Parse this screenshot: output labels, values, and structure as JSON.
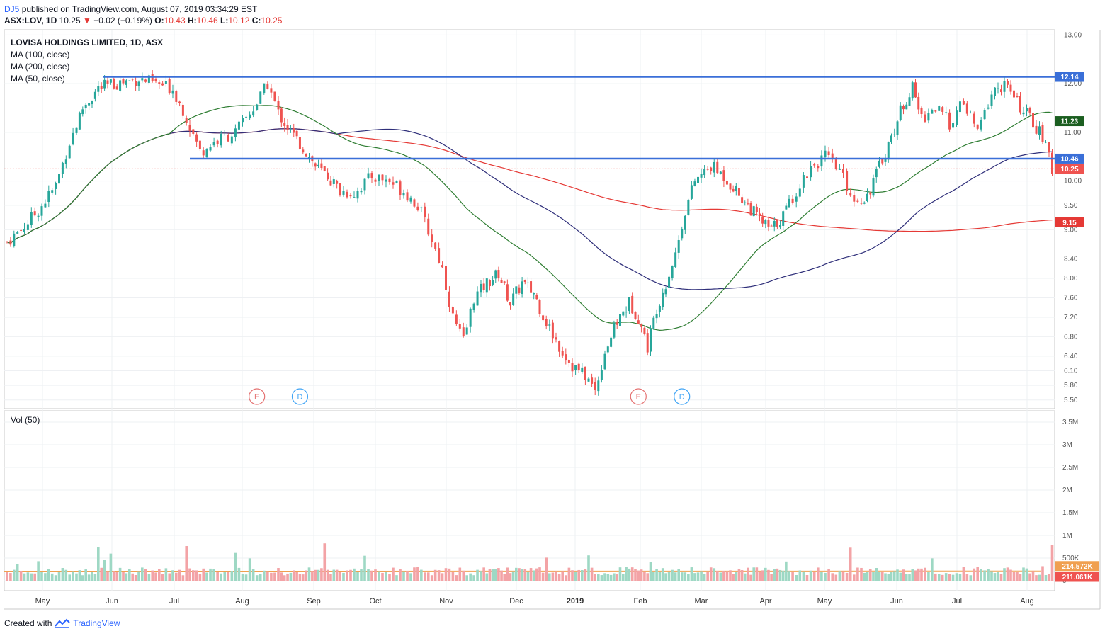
{
  "header": {
    "author": "DJ5",
    "published": "published on TradingView.com, August 07, 2019 03:34:29 EST",
    "symbol": "ASX:LOV, 1D",
    "last": "10.25",
    "change": "−0.02 (−0.19%)",
    "o_label": "O:",
    "o_val": "10.43",
    "h_label": "H:",
    "h_val": "10.46",
    "l_label": "L:",
    "l_val": "10.12",
    "c_label": "C:",
    "c_val": "10.25"
  },
  "legend": {
    "title": "LOVISA HOLDINGS LIMITED, 1D, ASX",
    "ma100": "MA (100, close)",
    "ma200": "MA (200, close)",
    "ma50": "MA (50, close)",
    "vol": "Vol (50)"
  },
  "footer": {
    "created": "Created with",
    "brand": "TradingView"
  },
  "colors": {
    "up": "#26a69a",
    "down": "#ef5350",
    "ma50": "#2e7d32",
    "ma100": "#2f2f7a",
    "ma200": "#e53935",
    "hline": "#3a6fd8",
    "vol_ma": "#f0a050"
  },
  "chart_data": {
    "type": "candlestick",
    "price_ticks": [
      "13.00",
      "12.00",
      "11.00",
      "10.00",
      "9.50",
      "9.00",
      "8.40",
      "8.00",
      "7.60",
      "7.20",
      "6.80",
      "6.40",
      "6.10",
      "5.80",
      "5.50"
    ],
    "price_range": [
      5.38,
      13.05
    ],
    "volume_ticks": [
      "3.5M",
      "3M",
      "2.5M",
      "2M",
      "1.5M",
      "1M",
      "500K",
      "0"
    ],
    "volume_range": [
      0,
      3500000
    ],
    "months": [
      "May",
      "Jun",
      "Jul",
      "Aug",
      "Sep",
      "Oct",
      "Nov",
      "Dec",
      "2019",
      "Feb",
      "Mar",
      "Apr",
      "May",
      "Jun",
      "Jul",
      "Aug"
    ],
    "badges": [
      {
        "label": "12.14",
        "value": 12.14,
        "color": "#3a6fd8"
      },
      {
        "label": "11.23",
        "value": 11.23,
        "color": "#1b5e20"
      },
      {
        "label": "10.46",
        "value": 10.46,
        "color": "#3a6fd8"
      },
      {
        "label": "10.25",
        "value": 10.25,
        "color": "#ef5350"
      },
      {
        "label": "9.15",
        "value": 9.15,
        "color": "#e53935"
      }
    ],
    "volume_badges": [
      {
        "label": "214.572K",
        "value": 214572,
        "color": "#f0a050"
      },
      {
        "label": "211.061K",
        "value": 211061,
        "color": "#ef5350"
      }
    ],
    "hlines": [
      12.14,
      10.46
    ],
    "last_close": 10.25,
    "events": [
      {
        "label": "E",
        "month_index": 3.7
      },
      {
        "label": "D",
        "month_index": 4.35
      },
      {
        "label": "E",
        "month_index": 9.55
      },
      {
        "label": "D",
        "month_index": 10.25
      }
    ],
    "price_path": [
      [
        0,
        8.75
      ],
      [
        0.2,
        9.0
      ],
      [
        0.45,
        9.4
      ],
      [
        0.7,
        9.9
      ],
      [
        0.9,
        10.8
      ],
      [
        1.1,
        11.5
      ],
      [
        1.35,
        11.9
      ],
      [
        1.6,
        12.0
      ],
      [
        1.8,
        12.05
      ],
      [
        2.0,
        12.1
      ],
      [
        2.25,
        12.0
      ],
      [
        2.5,
        11.9
      ],
      [
        2.7,
        11.3
      ],
      [
        2.9,
        10.6
      ],
      [
        3.1,
        10.8
      ],
      [
        3.4,
        11.0
      ],
      [
        3.7,
        11.6
      ],
      [
        3.85,
        12.0
      ],
      [
        4.0,
        11.4
      ],
      [
        4.2,
        11.0
      ],
      [
        4.45,
        10.6
      ],
      [
        4.6,
        10.3
      ],
      [
        4.8,
        10.1
      ],
      [
        5.0,
        9.8
      ],
      [
        5.2,
        9.75
      ],
      [
        5.45,
        10.1
      ],
      [
        5.7,
        10.0
      ],
      [
        5.9,
        9.8
      ],
      [
        6.1,
        9.5
      ],
      [
        6.3,
        8.8
      ],
      [
        6.45,
        8.2
      ],
      [
        6.6,
        7.2
      ],
      [
        6.75,
        6.7
      ],
      [
        6.9,
        7.6
      ],
      [
        7.1,
        7.9
      ],
      [
        7.3,
        8.1
      ],
      [
        7.5,
        7.5
      ],
      [
        7.7,
        7.9
      ],
      [
        7.9,
        7.7
      ],
      [
        8.1,
        7.1
      ],
      [
        8.3,
        6.6
      ],
      [
        8.5,
        6.2
      ],
      [
        8.7,
        6.0
      ],
      [
        8.85,
        5.7
      ],
      [
        9.0,
        6.5
      ],
      [
        9.2,
        7.1
      ],
      [
        9.4,
        7.5
      ],
      [
        9.55,
        7.2
      ],
      [
        9.7,
        6.6
      ],
      [
        9.85,
        7.4
      ],
      [
        10.0,
        7.9
      ],
      [
        10.15,
        8.5
      ],
      [
        10.3,
        9.4
      ],
      [
        10.45,
        10.0
      ],
      [
        10.7,
        10.3
      ],
      [
        10.9,
        10.1
      ],
      [
        11.1,
        9.8
      ],
      [
        11.3,
        9.5
      ],
      [
        11.5,
        9.2
      ],
      [
        11.7,
        9.0
      ],
      [
        11.9,
        9.3
      ],
      [
        12.1,
        9.8
      ],
      [
        12.3,
        10.3
      ],
      [
        12.5,
        10.5
      ],
      [
        12.7,
        10.2
      ],
      [
        12.9,
        9.6
      ],
      [
        13.1,
        9.7
      ],
      [
        13.3,
        10.3
      ],
      [
        13.5,
        10.9
      ],
      [
        13.7,
        11.6
      ],
      [
        13.85,
        11.9
      ],
      [
        14.0,
        11.3
      ],
      [
        14.2,
        11.5
      ],
      [
        14.4,
        11.2
      ],
      [
        14.6,
        11.6
      ],
      [
        14.8,
        11.0
      ],
      [
        15.0,
        11.8
      ],
      [
        15.2,
        12.0
      ],
      [
        15.4,
        11.6
      ],
      [
        15.6,
        11.3
      ],
      [
        15.8,
        10.9
      ],
      [
        15.95,
        10.25
      ]
    ]
  }
}
